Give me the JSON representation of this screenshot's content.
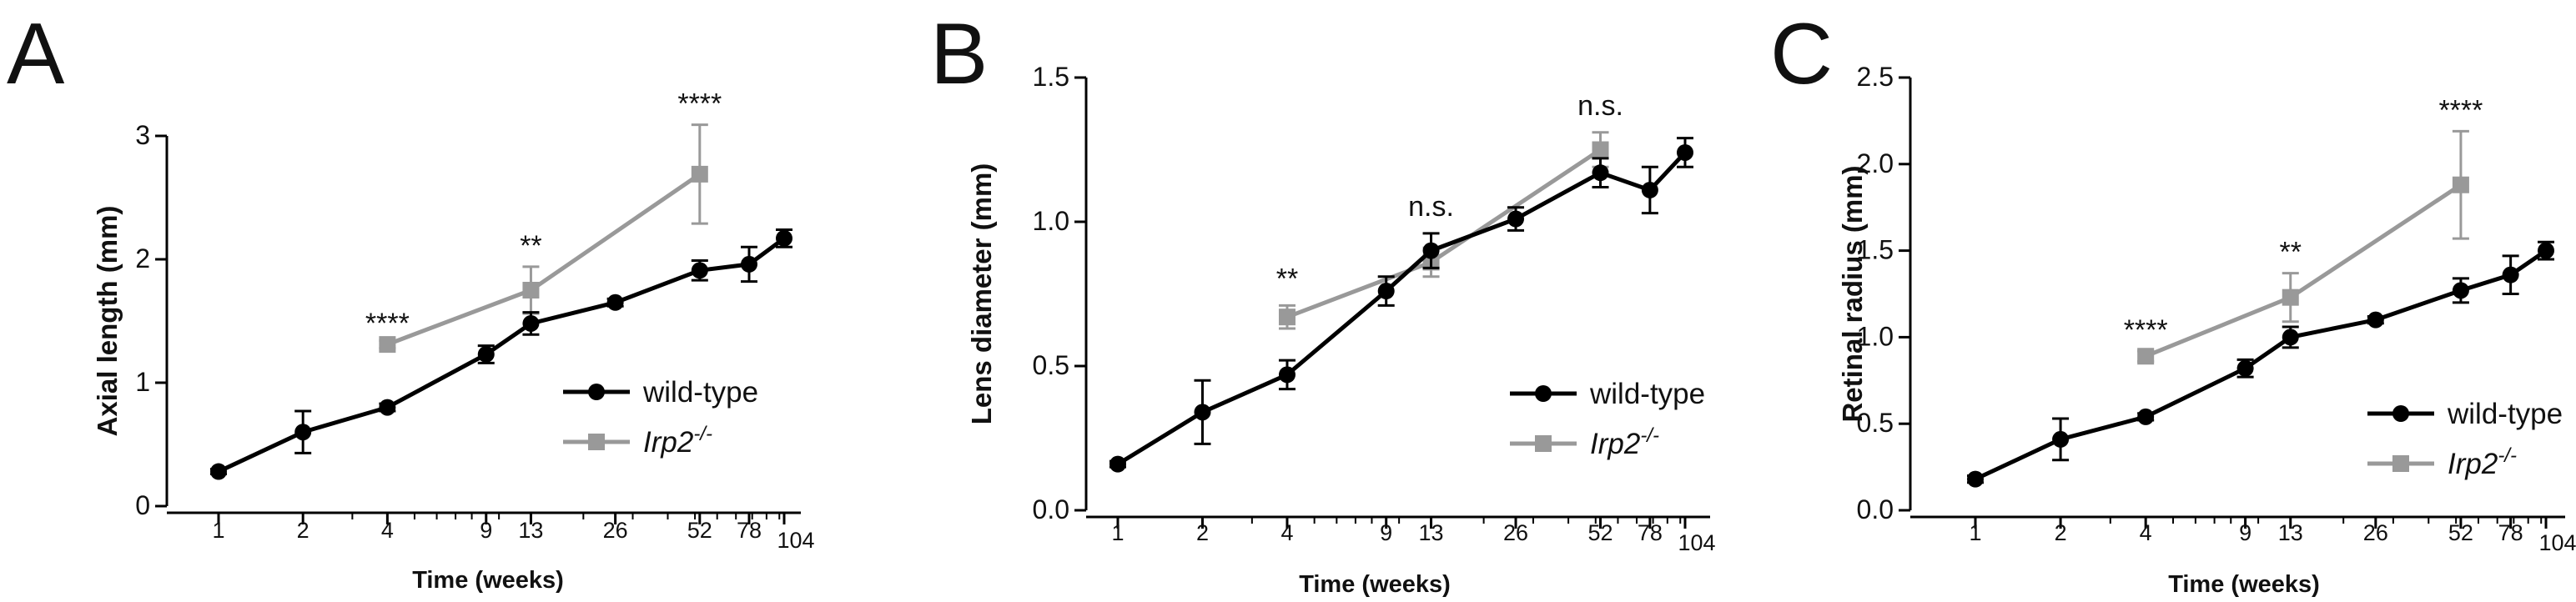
{
  "chart_data": [
    {
      "type": "line",
      "panel_label": "A",
      "xlabel": "Time (weeks)",
      "ylabel": "Axial length (mm)",
      "x_scale": "log",
      "x_ticks": [
        1,
        2,
        4,
        9,
        13,
        26,
        52,
        78,
        104
      ],
      "x_tick_labels": [
        "1",
        "2",
        "4",
        "9",
        "13",
        "26",
        "52",
        "78",
        "104"
      ],
      "ylim": [
        0,
        3
      ],
      "y_ticks": [
        0,
        1,
        2,
        3
      ],
      "y_tick_labels": [
        "0",
        "1",
        "2",
        "3"
      ],
      "legend_position": "right",
      "series": [
        {
          "name": "wild-type",
          "color": "#000000",
          "marker": "circle",
          "x": [
            1,
            2,
            4,
            9,
            13,
            26,
            52,
            78,
            104
          ],
          "y": [
            0.28,
            0.6,
            0.8,
            1.23,
            1.48,
            1.65,
            1.91,
            1.96,
            2.17
          ],
          "err": [
            0.02,
            0.17,
            0.03,
            0.07,
            0.09,
            0.03,
            0.08,
            0.14,
            0.07
          ]
        },
        {
          "name": "Irp2",
          "name_superscript": "-/-",
          "color": "#999999",
          "marker": "square",
          "x": [
            4,
            13,
            52
          ],
          "y": [
            1.31,
            1.75,
            2.69
          ],
          "err": [
            0.03,
            0.19,
            0.4
          ]
        }
      ],
      "annotations": [
        {
          "x": 4,
          "y": 1.31,
          "text": "****"
        },
        {
          "x": 13,
          "y": 1.94,
          "text": "**"
        },
        {
          "x": 52,
          "y": 3.09,
          "text": "****"
        }
      ]
    },
    {
      "type": "line",
      "panel_label": "B",
      "xlabel": "Time (weeks)",
      "ylabel": "Lens diameter (mm)",
      "x_scale": "log",
      "x_ticks": [
        1,
        2,
        4,
        9,
        13,
        26,
        52,
        78,
        104
      ],
      "x_tick_labels": [
        "1",
        "2",
        "4",
        "9",
        "13",
        "26",
        "52",
        "78",
        "104"
      ],
      "ylim": [
        0,
        1.5
      ],
      "y_ticks": [
        0,
        0.5,
        1,
        1.5
      ],
      "y_tick_labels": [
        "0.0",
        "0.5",
        "1.0",
        "1.5"
      ],
      "legend_position": "right",
      "series": [
        {
          "name": "wild-type",
          "color": "#000000",
          "marker": "circle",
          "x": [
            1,
            2,
            4,
            9,
            13,
            26,
            52,
            78,
            104
          ],
          "y": [
            0.16,
            0.34,
            0.47,
            0.76,
            0.9,
            1.01,
            1.17,
            1.11,
            1.24
          ],
          "err": [
            0.01,
            0.11,
            0.05,
            0.05,
            0.06,
            0.04,
            0.05,
            0.08,
            0.05
          ]
        },
        {
          "name": "Irp2",
          "name_superscript": "-/-",
          "color": "#999999",
          "marker": "square",
          "x": [
            4,
            13,
            52
          ],
          "y": [
            0.67,
            0.86,
            1.25
          ],
          "err": [
            0.04,
            0.05,
            0.06
          ]
        }
      ],
      "annotations": [
        {
          "x": 4,
          "y": 0.73,
          "text": "**"
        },
        {
          "x": 13,
          "y": 0.98,
          "text": "n.s."
        },
        {
          "x": 52,
          "y": 1.33,
          "text": "n.s."
        }
      ]
    },
    {
      "type": "line",
      "panel_label": "C",
      "xlabel": "Time (weeks)",
      "ylabel": "Retinal radius (mm)",
      "x_scale": "log",
      "x_ticks": [
        1,
        2,
        4,
        9,
        13,
        26,
        52,
        78,
        104
      ],
      "x_tick_labels": [
        "1",
        "2",
        "4",
        "9",
        "13",
        "26",
        "52",
        "78",
        "104"
      ],
      "ylim": [
        0,
        2.5
      ],
      "y_ticks": [
        0,
        0.5,
        1,
        1.5,
        2,
        2.5
      ],
      "y_tick_labels": [
        "0.0",
        "0.5",
        "1.0",
        "1.5",
        "2.0",
        "2.5"
      ],
      "legend_position": "right",
      "series": [
        {
          "name": "wild-type",
          "color": "#000000",
          "marker": "circle",
          "x": [
            1,
            2,
            4,
            9,
            13,
            26,
            52,
            78,
            104
          ],
          "y": [
            0.18,
            0.41,
            0.54,
            0.82,
            1.0,
            1.1,
            1.27,
            1.36,
            1.5
          ],
          "err": [
            0.02,
            0.12,
            0.02,
            0.05,
            0.06,
            0.02,
            0.07,
            0.11,
            0.05
          ]
        },
        {
          "name": "Irp2",
          "name_superscript": "-/-",
          "color": "#999999",
          "marker": "square",
          "x": [
            4,
            13,
            52
          ],
          "y": [
            0.89,
            1.23,
            1.88
          ],
          "err": [
            0.03,
            0.14,
            0.31
          ]
        }
      ],
      "annotations": [
        {
          "x": 4,
          "y": 0.92,
          "text": "****"
        },
        {
          "x": 13,
          "y": 1.37,
          "text": "**"
        },
        {
          "x": 52,
          "y": 2.19,
          "text": "****"
        }
      ]
    }
  ]
}
